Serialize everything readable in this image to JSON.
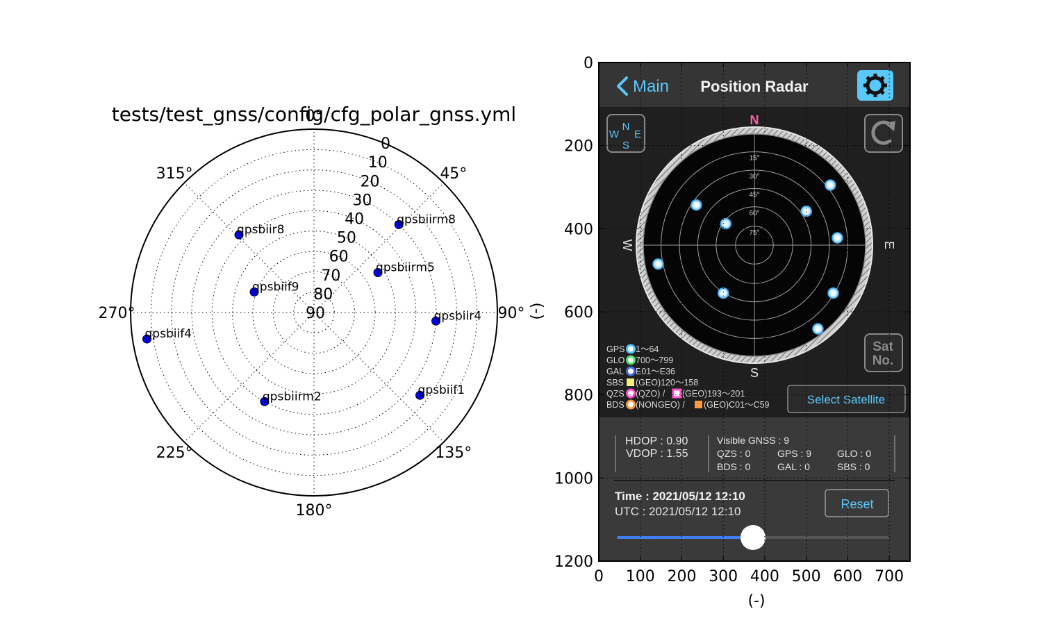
{
  "chart_data": [
    {
      "type": "scatter",
      "subtype": "polar",
      "title": "tests/test_gnss/config/cfg_polar_gnss.yml",
      "theta_direction": "clockwise",
      "theta_zero": "N",
      "theta_tick_labels": [
        "0°",
        "45°",
        "90°",
        "135°",
        "180°",
        "225°",
        "270°",
        "315°"
      ],
      "theta_ticks_deg": [
        0,
        45,
        90,
        135,
        180,
        225,
        270,
        315
      ],
      "r_tick_labels": [
        "0",
        "10",
        "20",
        "30",
        "40",
        "50",
        "60",
        "70",
        "80",
        "90"
      ],
      "r_ticks": [
        0,
        10,
        20,
        30,
        40,
        50,
        60,
        70,
        80,
        90
      ],
      "r_axis_inverted": true,
      "r_label": "(-)",
      "grid": true,
      "marker_color": "#0000ff",
      "points": [
        {
          "name": "gpsbiirm8",
          "azimuth": 44,
          "elevation": 30
        },
        {
          "name": "gpsbiir8",
          "azimuth": 316,
          "elevation": 37
        },
        {
          "name": "gpsbiirm5",
          "azimuth": 58,
          "elevation": 53
        },
        {
          "name": "gpsbiif9",
          "azimuth": 289,
          "elevation": 59
        },
        {
          "name": "gpsbiir4",
          "azimuth": 94,
          "elevation": 30
        },
        {
          "name": "gpsbiif4",
          "azimuth": 261,
          "elevation": 7
        },
        {
          "name": "gpsbiirm2",
          "azimuth": 209,
          "elevation": 40
        },
        {
          "name": "gpsbiif1",
          "azimuth": 128,
          "elevation": 24
        }
      ]
    },
    {
      "type": "image",
      "xlabel": "(-)",
      "ylabel": "",
      "xlim": [
        0,
        750
      ],
      "ylim": [
        1200,
        0
      ],
      "x_ticks": [
        0,
        100,
        200,
        300,
        400,
        500,
        600,
        700
      ],
      "y_ticks": [
        0,
        200,
        400,
        600,
        800,
        1000,
        1200
      ],
      "grid": true,
      "image": {
        "header": {
          "back_label": "Main",
          "title": "Position Radar"
        },
        "compass": {
          "n": "N",
          "s": "S",
          "e": "E",
          "w": "W"
        },
        "wns_icon": {
          "n": "N",
          "e": "E",
          "s": "S",
          "w": "W"
        },
        "sat_no_label": [
          "Sat",
          "No."
        ],
        "elevation_rings": [
          "15°",
          "30°",
          "45°",
          "60°",
          "75°"
        ],
        "satellite_positions": [
          [
            558,
            295
          ],
          [
            235,
            343
          ],
          [
            500,
            358
          ],
          [
            306,
            388
          ],
          [
            575,
            422
          ],
          [
            143,
            485
          ],
          [
            300,
            555
          ],
          [
            565,
            555
          ],
          [
            528,
            641
          ]
        ],
        "legend": [
          {
            "name": "GPS",
            "text": "1〜64",
            "color": "#4fc3f7"
          },
          {
            "name": "GLO",
            "text": "700〜799",
            "color": "#4cd964"
          },
          {
            "name": "GAL",
            "text": "E01〜E36",
            "color": "#4169e1"
          },
          {
            "name": "SBS",
            "text": "(GEO)120〜158",
            "color": "#f0f07a"
          },
          {
            "name": "QZS",
            "text": "(QZO) /",
            "text2": "(GEO)193〜201",
            "color": "#ff4fd0"
          },
          {
            "name": "BDS",
            "text": "(NONGEO) /",
            "text2": "(GEO)C01〜C59",
            "color": "#ff9a3c"
          }
        ],
        "select_satellite_label": "Select Satellite",
        "stats": {
          "hdop": "HDOP : 0.90",
          "vdop": "VDOP : 1.55",
          "visible": "Visible GNSS : 9",
          "qzs": "QZS : 0",
          "gps": "GPS : 9",
          "glo": "GLO : 0",
          "bds": "BDS : 0",
          "gal": "GAL : 0",
          "sbs": "SBS : 0"
        },
        "time_label": "Time : 2021/05/12 12:10",
        "utc_label": "UTC : 2021/05/12 12:10",
        "reset_label": "Reset",
        "slider_value": 0.5
      }
    }
  ]
}
